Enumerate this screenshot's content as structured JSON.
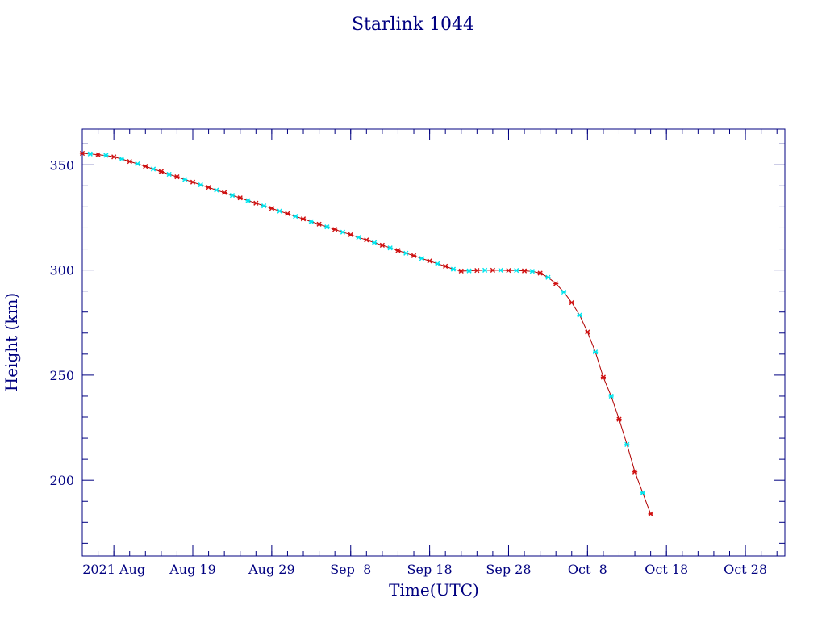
{
  "chart_data": {
    "type": "line",
    "title": "Starlink 1044",
    "xlabel": "Time(UTC)",
    "ylabel": "Height (km)",
    "x_unit": "date",
    "xlim": [
      "2021-08-05",
      "2021-11-02"
    ],
    "ylim": [
      164,
      367
    ],
    "x_ticks": [
      {
        "date": "2021-08-09",
        "label": "2021 Aug"
      },
      {
        "date": "2021-08-19",
        "label": "Aug 19"
      },
      {
        "date": "2021-08-29",
        "label": "Aug 29"
      },
      {
        "date": "2021-09-08",
        "label": "Sep  8"
      },
      {
        "date": "2021-09-18",
        "label": "Sep 18"
      },
      {
        "date": "2021-09-28",
        "label": "Sep 28"
      },
      {
        "date": "2021-10-08",
        "label": "Oct  8"
      },
      {
        "date": "2021-10-18",
        "label": "Oct 18"
      },
      {
        "date": "2021-10-28",
        "label": "Oct 28"
      }
    ],
    "y_ticks": [
      200,
      250,
      300,
      350
    ],
    "grid": false,
    "line_color": "#b00000",
    "marker_colors": [
      "#d01010",
      "#00e5ee"
    ],
    "series": [
      {
        "x": [
          "2021-08-05",
          "2021-08-06",
          "2021-08-07",
          "2021-08-08",
          "2021-08-09",
          "2021-08-10",
          "2021-08-11",
          "2021-08-12",
          "2021-08-13",
          "2021-08-14",
          "2021-08-15",
          "2021-08-16",
          "2021-08-17",
          "2021-08-18",
          "2021-08-19",
          "2021-08-20",
          "2021-08-21",
          "2021-08-22",
          "2021-08-23",
          "2021-08-24",
          "2021-08-25",
          "2021-08-26",
          "2021-08-27",
          "2021-08-28",
          "2021-08-29",
          "2021-08-30",
          "2021-08-31",
          "2021-09-01",
          "2021-09-02",
          "2021-09-03",
          "2021-09-04",
          "2021-09-05",
          "2021-09-06",
          "2021-09-07",
          "2021-09-08",
          "2021-09-09",
          "2021-09-10",
          "2021-09-11",
          "2021-09-12",
          "2021-09-13",
          "2021-09-14",
          "2021-09-15",
          "2021-09-16",
          "2021-09-17",
          "2021-09-18",
          "2021-09-19",
          "2021-09-20",
          "2021-09-21",
          "2021-09-22",
          "2021-09-23",
          "2021-09-24",
          "2021-09-25",
          "2021-09-26",
          "2021-09-27",
          "2021-09-28",
          "2021-09-29",
          "2021-09-30",
          "2021-10-01",
          "2021-10-02",
          "2021-10-03",
          "2021-10-04",
          "2021-10-05",
          "2021-10-06",
          "2021-10-07",
          "2021-10-08",
          "2021-10-09",
          "2021-10-10",
          "2021-10-11",
          "2021-10-12",
          "2021-10-13",
          "2021-10-14",
          "2021-10-15",
          "2021-10-16"
        ],
        "y": [
          355.5,
          355.2,
          354.8,
          354.5,
          353.8,
          352.8,
          351.6,
          350.5,
          349.3,
          348.0,
          346.8,
          345.5,
          344.3,
          343.0,
          341.8,
          340.5,
          339.3,
          338.0,
          336.8,
          335.5,
          334.3,
          333.0,
          331.8,
          330.5,
          329.3,
          328.0,
          326.8,
          325.5,
          324.3,
          323.0,
          321.8,
          320.5,
          319.3,
          318.0,
          316.8,
          315.5,
          314.3,
          313.0,
          311.8,
          310.5,
          309.3,
          308.0,
          306.8,
          305.5,
          304.3,
          303.0,
          301.8,
          300.4,
          299.5,
          299.6,
          299.8,
          299.9,
          299.9,
          299.9,
          299.8,
          299.8,
          299.6,
          299.4,
          298.5,
          296.5,
          293.5,
          289.5,
          284.5,
          278.5,
          270.5,
          261.0,
          249.0,
          240.0,
          229.0,
          217.0,
          204.0,
          194.0,
          184.0
        ]
      }
    ]
  }
}
